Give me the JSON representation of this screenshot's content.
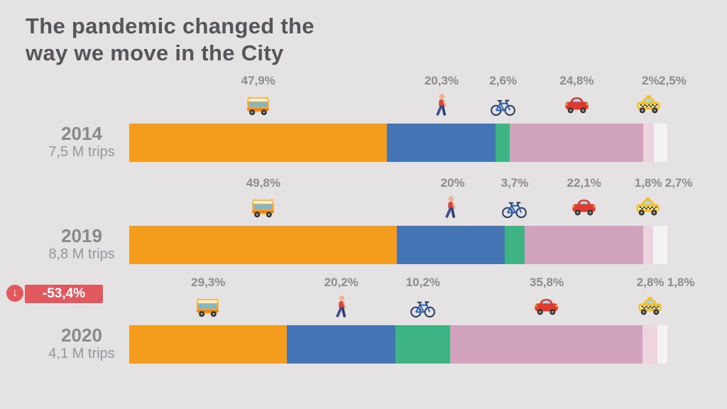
{
  "title": {
    "line1": "The pandemic changed the",
    "line2": "way we move in the City"
  },
  "palette": {
    "background": "#E4E2E2",
    "title_text": "#565659",
    "label_text": "#8C8C8E",
    "year_text": "#8A8A8C",
    "trips_text": "#96969A",
    "badge_red": "#E0595F"
  },
  "chart_data": {
    "type": "bar",
    "stacked": true,
    "orientation": "horizontal",
    "unit": "%",
    "axis": {
      "x_range": [
        0,
        100
      ],
      "grid": false,
      "legend": "icons above segments"
    },
    "modes": [
      {
        "name": "bus",
        "icon": "bus-icon",
        "color": "#F39C1E"
      },
      {
        "name": "walk",
        "icon": "walking-person-icon",
        "color": "#4574B5"
      },
      {
        "name": "bike",
        "icon": "bicycle-icon",
        "color": "#3EB383"
      },
      {
        "name": "car",
        "icon": "car-icon",
        "color": "#D2A3BC"
      },
      {
        "name": "taxi",
        "icon": "taxi-icon",
        "color": "#EDD4DF"
      },
      {
        "name": "other",
        "icon": "",
        "color": "#F4F3F3"
      }
    ],
    "rows": [
      {
        "year": "2014",
        "trips": "7,5 M trips",
        "values": [
          47.9,
          20.3,
          2.6,
          24.8,
          2.0,
          2.5
        ],
        "labels": [
          "47,9%",
          "20,3%",
          "2,6%",
          "24,8%",
          "2%",
          "2,5%"
        ]
      },
      {
        "year": "2019",
        "trips": "8,8 M trips",
        "values": [
          49.8,
          20.0,
          3.7,
          22.1,
          1.8,
          2.7
        ],
        "labels": [
          "49,8%",
          "20%",
          "3,7%",
          "22,1%",
          "1,8%",
          "2,7%"
        ]
      },
      {
        "year": "2020",
        "trips": "4,1 M trips",
        "values": [
          29.3,
          20.2,
          10.2,
          35.8,
          2.8,
          1.8
        ],
        "labels": [
          "29,3%",
          "20,2%",
          "10,2%",
          "35,8%",
          "2,8%",
          "1,8%"
        ],
        "change_badge": {
          "label": "-53,4%",
          "icon": "down-arrow-icon",
          "color": "#E0595F"
        }
      }
    ]
  }
}
